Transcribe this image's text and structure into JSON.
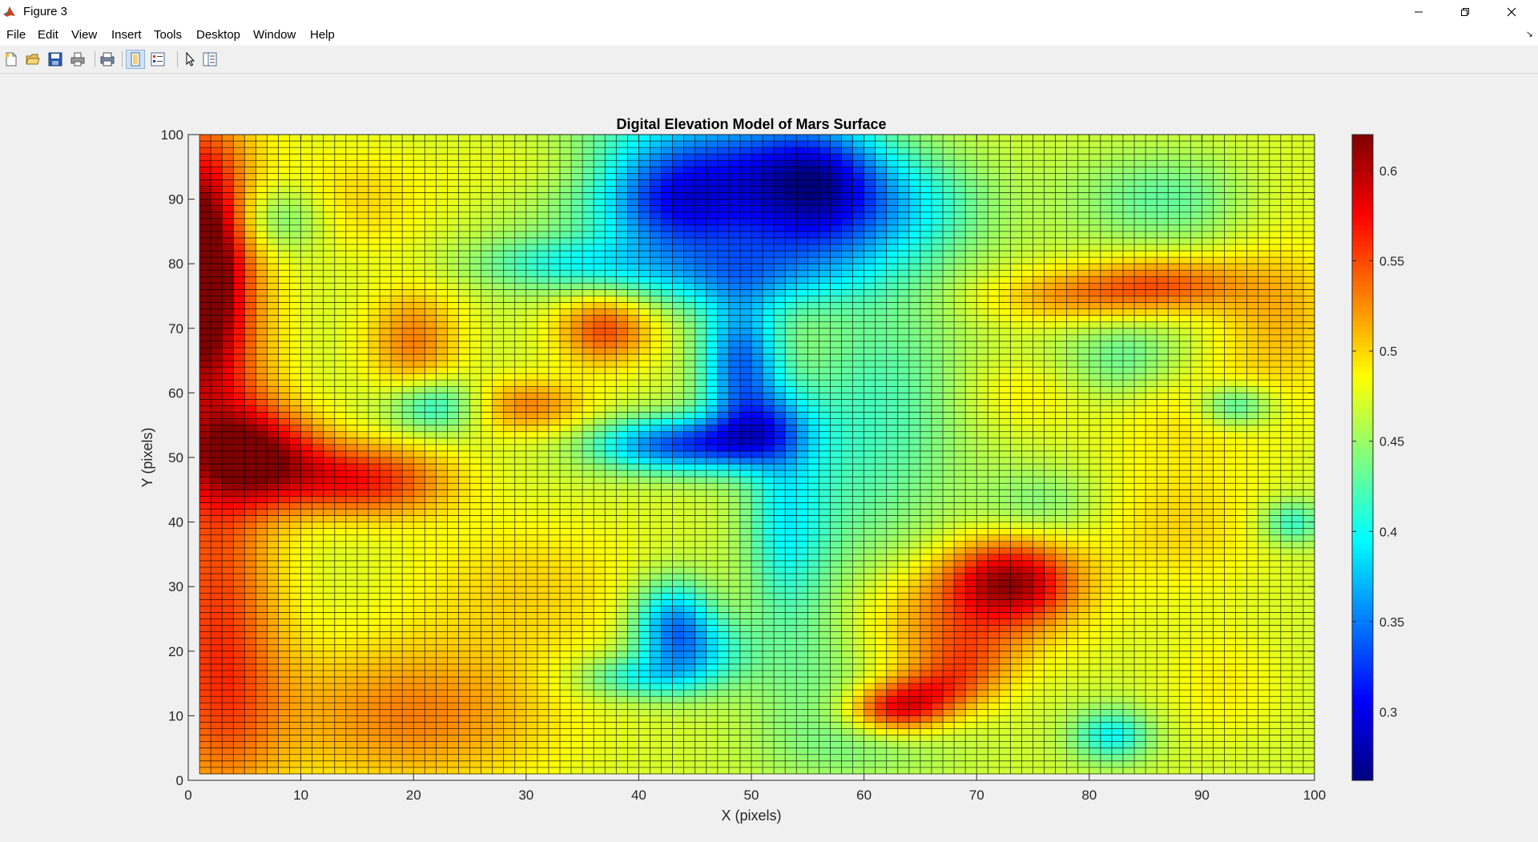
{
  "window": {
    "title": "Figure 3",
    "icon": "matlab-icon",
    "controls": [
      "minimize-icon",
      "restore-icon",
      "close-icon"
    ]
  },
  "menu": [
    "File",
    "Edit",
    "View",
    "Insert",
    "Tools",
    "Desktop",
    "Window",
    "Help"
  ],
  "toolbar": {
    "buttons": [
      "new-figure-icon",
      "open-file-icon",
      "save-icon",
      "print-icon",
      "print-preview-icon",
      "toggle-plot-tools-icon",
      "insert-legend-icon",
      "edit-plot-pointer-icon",
      "show-plot-tools-icon"
    ]
  },
  "colors": {
    "axes_background": "#ffffff",
    "grid_line": "#000000",
    "figure_background": "#f0f0f0",
    "colormap": "jet"
  },
  "chart_data": {
    "type": "heatmap",
    "title": "Digital Elevation Model of Mars Surface",
    "xlabel": "X (pixels)",
    "ylabel": "Y (pixels)",
    "xlim": [
      0,
      100
    ],
    "ylim": [
      0,
      100
    ],
    "x_ticks": [
      "0",
      "10",
      "20",
      "30",
      "40",
      "50",
      "60",
      "70",
      "80",
      "90",
      "100"
    ],
    "y_ticks": [
      "0",
      "10",
      "20",
      "30",
      "40",
      "50",
      "60",
      "70",
      "80",
      "90",
      "100"
    ],
    "grid_resolution": 100,
    "cell_edges": "black",
    "colorbar": {
      "colormap": "jet",
      "range": [
        0.262,
        0.62
      ],
      "ticks": [
        "0.3",
        "0.35",
        "0.4",
        "0.45",
        "0.5",
        "0.55",
        "0.6"
      ],
      "location": "right"
    },
    "surface": {
      "base": 0.47,
      "features": [
        {
          "x": 1,
          "y": 80,
          "dz": 0.14,
          "sx": 2.5,
          "sy": 12
        },
        {
          "x": 2,
          "y": 62,
          "dz": 0.08,
          "sx": 4,
          "sy": 30
        },
        {
          "x": 3,
          "y": 15,
          "dz": 0.06,
          "sx": 4,
          "sy": 15
        },
        {
          "x": 6,
          "y": 51,
          "dz": 0.1,
          "sx": 4,
          "sy": 5
        },
        {
          "x": 12,
          "y": 47,
          "dz": 0.06,
          "sx": 6,
          "sy": 4
        },
        {
          "x": 17,
          "y": 46,
          "dz": 0.05,
          "sx": 5,
          "sy": 4
        },
        {
          "x": 8,
          "y": 87,
          "dz": -0.05,
          "sx": 3,
          "sy": 4
        },
        {
          "x": 20,
          "y": 68,
          "dz": 0.06,
          "sx": 3,
          "sy": 6
        },
        {
          "x": 22,
          "y": 58,
          "dz": -0.07,
          "sx": 3,
          "sy": 3
        },
        {
          "x": 30,
          "y": 58,
          "dz": 0.06,
          "sx": 4,
          "sy": 3
        },
        {
          "x": 37,
          "y": 70,
          "dz": 0.08,
          "sx": 3,
          "sy": 4
        },
        {
          "x": 20,
          "y": 10,
          "dz": 0.06,
          "sx": 9,
          "sy": 8
        },
        {
          "x": 15,
          "y": 90,
          "dz": 0.03,
          "sx": 5,
          "sy": 6
        },
        {
          "x": 33,
          "y": 95,
          "dz": 0.03,
          "sx": 6,
          "sy": 4
        },
        {
          "x": 47,
          "y": 94,
          "dz": -0.14,
          "sx": 9,
          "sy": 7
        },
        {
          "x": 43,
          "y": 88,
          "dz": -0.06,
          "sx": 4,
          "sy": 5
        },
        {
          "x": 56,
          "y": 93,
          "dz": -0.1,
          "sx": 4,
          "sy": 6
        },
        {
          "x": 55,
          "y": 84,
          "dz": -0.06,
          "sx": 8,
          "sy": 5
        },
        {
          "x": 48,
          "y": 78,
          "dz": -0.07,
          "sx": 8,
          "sy": 4
        },
        {
          "x": 33,
          "y": 80,
          "dz": -0.05,
          "sx": 6,
          "sy": 3
        },
        {
          "x": 49,
          "y": 65,
          "dz": -0.12,
          "sx": 2.5,
          "sy": 7
        },
        {
          "x": 46,
          "y": 52,
          "dz": -0.11,
          "sx": 4.5,
          "sy": 3
        },
        {
          "x": 40,
          "y": 52,
          "dz": -0.06,
          "sx": 4,
          "sy": 3
        },
        {
          "x": 51,
          "y": 55,
          "dz": -0.08,
          "sx": 3,
          "sy": 4
        },
        {
          "x": 53,
          "y": 40,
          "dz": -0.06,
          "sx": 2.5,
          "sy": 10
        },
        {
          "x": 43,
          "y": 24,
          "dz": -0.11,
          "sx": 2.5,
          "sy": 5
        },
        {
          "x": 40,
          "y": 16,
          "dz": -0.06,
          "sx": 4,
          "sy": 2.5
        },
        {
          "x": 46,
          "y": 20,
          "dz": -0.05,
          "sx": 3,
          "sy": 4
        },
        {
          "x": 55,
          "y": 18,
          "dz": -0.03,
          "sx": 4,
          "sy": 10
        },
        {
          "x": 30,
          "y": 30,
          "dz": 0.03,
          "sx": 8,
          "sy": 8
        },
        {
          "x": 73,
          "y": 31,
          "dz": 0.12,
          "sx": 4,
          "sy": 4.5
        },
        {
          "x": 68,
          "y": 25,
          "dz": 0.05,
          "sx": 7,
          "sy": 6
        },
        {
          "x": 69,
          "y": 18,
          "dz": 0.05,
          "sx": 3,
          "sy": 4
        },
        {
          "x": 63,
          "y": 11,
          "dz": 0.1,
          "sx": 3,
          "sy": 2.5
        },
        {
          "x": 66,
          "y": 14,
          "dz": 0.05,
          "sx": 3,
          "sy": 2.5
        },
        {
          "x": 58,
          "y": 50,
          "dz": -0.03,
          "sx": 5,
          "sy": 15
        },
        {
          "x": 63,
          "y": 60,
          "dz": -0.03,
          "sx": 5,
          "sy": 15
        },
        {
          "x": 64,
          "y": 90,
          "dz": -0.04,
          "sx": 5,
          "sy": 5
        },
        {
          "x": 79,
          "y": 75,
          "dz": 0.05,
          "sx": 6,
          "sy": 3
        },
        {
          "x": 87,
          "y": 77,
          "dz": 0.06,
          "sx": 5,
          "sy": 3
        },
        {
          "x": 97,
          "y": 72,
          "dz": 0.04,
          "sx": 4,
          "sy": 8
        },
        {
          "x": 90,
          "y": 58,
          "dz": 0.03,
          "sx": 6,
          "sy": 5
        },
        {
          "x": 93,
          "y": 58,
          "dz": -0.07,
          "sx": 2.5,
          "sy": 2.5
        },
        {
          "x": 83,
          "y": 65,
          "dz": -0.04,
          "sx": 4,
          "sy": 5
        },
        {
          "x": 82,
          "y": 7,
          "dz": -0.07,
          "sx": 2.5,
          "sy": 3
        },
        {
          "x": 87,
          "y": 90,
          "dz": -0.04,
          "sx": 6,
          "sy": 5
        },
        {
          "x": 96,
          "y": 91,
          "dz": 0.01,
          "sx": 4,
          "sy": 6
        },
        {
          "x": 98,
          "y": 40,
          "dz": -0.06,
          "sx": 2,
          "sy": 2.5
        },
        {
          "x": 76,
          "y": 43,
          "dz": -0.03,
          "sx": 4,
          "sy": 4
        },
        {
          "x": 74,
          "y": 60,
          "dz": 0.02,
          "sx": 4,
          "sy": 4
        },
        {
          "x": 88,
          "y": 40,
          "dz": 0.03,
          "sx": 6,
          "sy": 8
        },
        {
          "x": 60,
          "y": 5,
          "dz": -0.02,
          "sx": 6,
          "sy": 4
        },
        {
          "x": 92,
          "y": 15,
          "dz": 0.02,
          "sx": 4,
          "sy": 6
        }
      ]
    }
  }
}
